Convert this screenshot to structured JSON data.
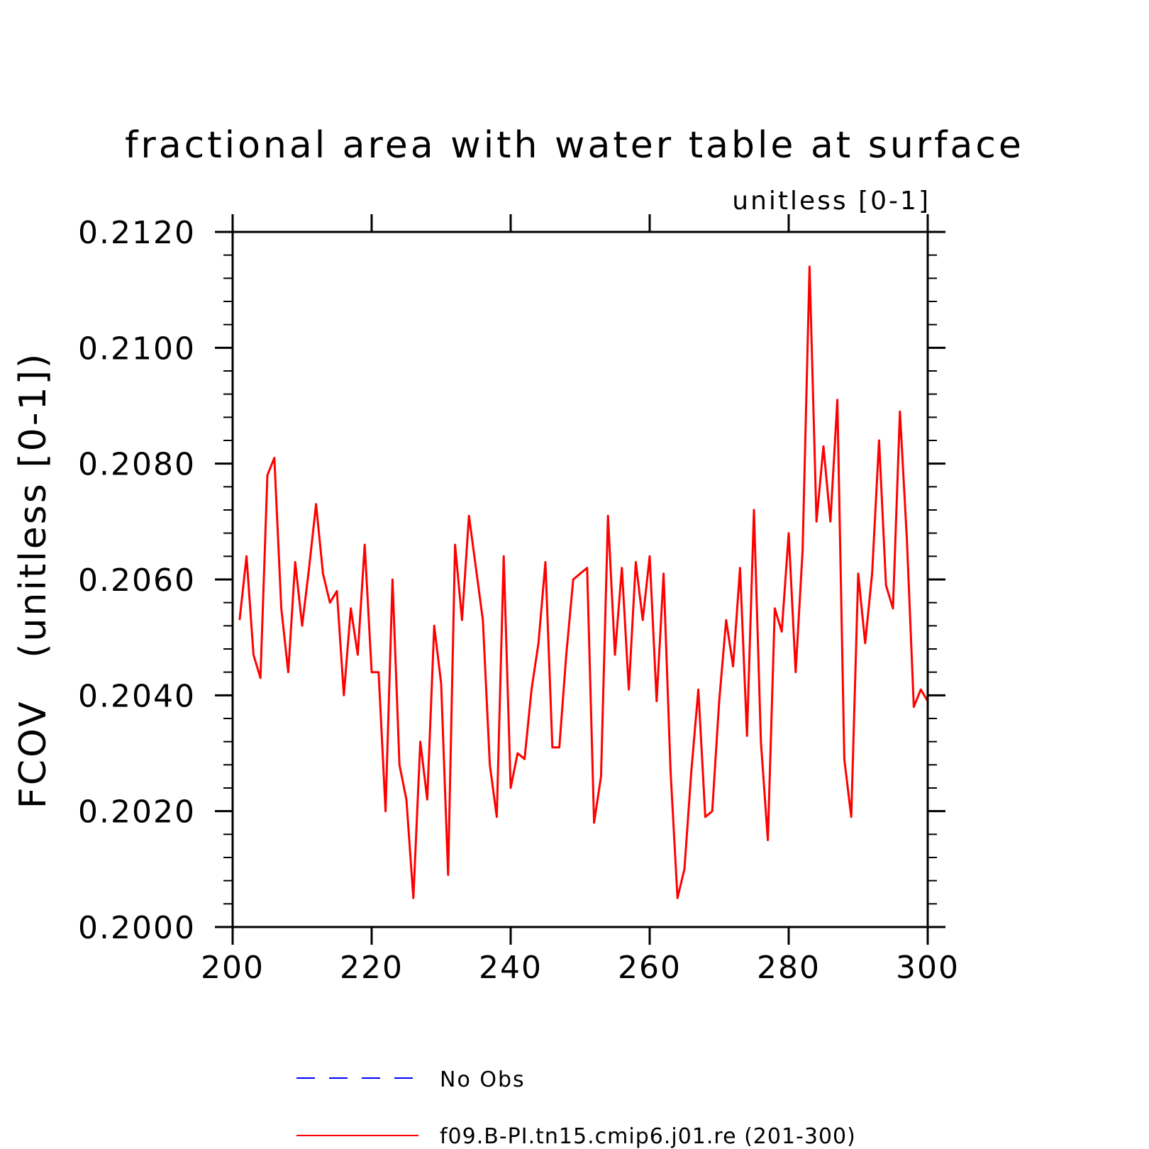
{
  "chart_data": {
    "type": "line",
    "title": "fractional area with water table at surface",
    "subtitle": "unitless [0-1]",
    "ylabel": "FCOV   (unitless [0-1])",
    "xlabel": "",
    "xlim": [
      200,
      300
    ],
    "ylim": [
      0.2,
      0.212
    ],
    "x_ticks": [
      200,
      220,
      240,
      260,
      280,
      300
    ],
    "x_tick_labels": [
      "200",
      "220",
      "240",
      "260",
      "280",
      "300"
    ],
    "y_ticks": [
      0.2,
      0.202,
      0.204,
      0.206,
      0.208,
      0.21,
      0.212
    ],
    "y_tick_labels": [
      "0.2000",
      "0.2020",
      "0.2040",
      "0.2060",
      "0.2080",
      "0.2100",
      "0.2120"
    ],
    "legend_position": "bottom",
    "legend": [
      {
        "label": "No Obs",
        "color": "#0000ff",
        "style": "dashed"
      },
      {
        "label": "f09.B-PI.tn15.cmip6.j01.re (201-300)",
        "color": "#ff0000",
        "style": "solid"
      }
    ],
    "series": [
      {
        "name": "f09.B-PI.tn15.cmip6.j01.re (201-300)",
        "color": "#ff0000",
        "x": [
          201,
          202,
          203,
          204,
          205,
          206,
          207,
          208,
          209,
          210,
          211,
          212,
          213,
          214,
          215,
          216,
          217,
          218,
          219,
          220,
          221,
          222,
          223,
          224,
          225,
          226,
          227,
          228,
          229,
          230,
          231,
          232,
          233,
          234,
          235,
          236,
          237,
          238,
          239,
          240,
          241,
          242,
          243,
          244,
          245,
          246,
          247,
          248,
          249,
          250,
          251,
          252,
          253,
          254,
          255,
          256,
          257,
          258,
          259,
          260,
          261,
          262,
          263,
          264,
          265,
          266,
          267,
          268,
          269,
          270,
          271,
          272,
          273,
          274,
          275,
          276,
          277,
          278,
          279,
          280,
          281,
          282,
          283,
          284,
          285,
          286,
          287,
          288,
          289,
          290,
          291,
          292,
          293,
          294,
          295,
          296,
          297,
          298,
          299,
          300
        ],
        "y": [
          0.2053,
          0.2064,
          0.2047,
          0.2043,
          0.2078,
          0.2081,
          0.2055,
          0.2044,
          0.2063,
          0.2052,
          0.2062,
          0.2073,
          0.2061,
          0.2056,
          0.2058,
          0.204,
          0.2055,
          0.2047,
          0.2066,
          0.2044,
          0.2044,
          0.202,
          0.206,
          0.2028,
          0.2022,
          0.2005,
          0.2032,
          0.2022,
          0.2052,
          0.2042,
          0.2009,
          0.2066,
          0.2053,
          0.2071,
          0.2062,
          0.2053,
          0.2028,
          0.2019,
          0.2064,
          0.2024,
          0.203,
          0.2029,
          0.2041,
          0.2049,
          0.2063,
          0.2031,
          0.2031,
          0.2047,
          0.206,
          0.2061,
          0.2062,
          0.2018,
          0.2026,
          0.2071,
          0.2047,
          0.2062,
          0.2041,
          0.2063,
          0.2053,
          0.2064,
          0.2039,
          0.2061,
          0.2027,
          0.2005,
          0.201,
          0.2027,
          0.2041,
          0.2019,
          0.202,
          0.2039,
          0.2053,
          0.2045,
          0.2062,
          0.2033,
          0.2072,
          0.2032,
          0.2015,
          0.2055,
          0.2051,
          0.2068,
          0.2044,
          0.2065,
          0.2114,
          0.207,
          0.2083,
          0.207,
          0.2091,
          0.2029,
          0.2019,
          0.2061,
          0.2049,
          0.2061,
          0.2084,
          0.2059,
          0.2055,
          0.2089,
          0.2067,
          0.2038,
          0.2041,
          0.2039
        ]
      }
    ]
  }
}
